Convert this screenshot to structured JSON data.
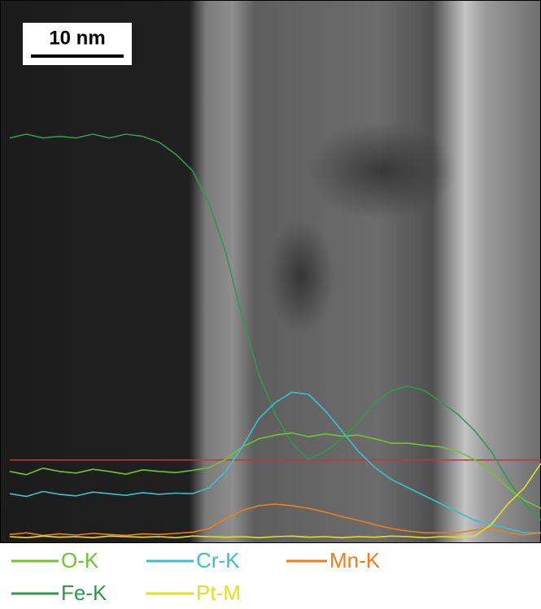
{
  "chart_data": {
    "type": "line",
    "scale_bar_label": "10 nm",
    "ylim": [
      0,
      100
    ],
    "reference_line": {
      "value": 15.3,
      "color": "#e8262a"
    },
    "series": [
      {
        "name": "O-K",
        "color": "#6cc62c",
        "values": [
          13.2,
          12.6,
          13.8,
          13.2,
          12.9,
          13.6,
          13.2,
          12.7,
          13.5,
          13.2,
          13.0,
          13.4,
          13.9,
          15.4,
          17.7,
          19.2,
          19.9,
          20.3,
          19.6,
          20.1,
          19.7,
          19.9,
          19.2,
          18.4,
          18.4,
          18.0,
          17.7,
          16.9,
          15.4,
          13.2,
          10.2,
          7.9,
          6.4
        ]
      },
      {
        "name": "Cr-K",
        "color": "#3cbfd0",
        "values": [
          9.1,
          8.6,
          9.5,
          9.0,
          8.7,
          9.4,
          9.1,
          8.8,
          9.3,
          9.0,
          9.2,
          9.1,
          10.2,
          13.2,
          17.7,
          22.9,
          25.9,
          27.8,
          27.4,
          24.4,
          20.7,
          16.9,
          13.9,
          11.7,
          10.2,
          8.7,
          7.2,
          5.7,
          4.2,
          3.4,
          2.7,
          1.9,
          1.9
        ]
      },
      {
        "name": "Mn-K",
        "color": "#f07c1c",
        "values": [
          1.6,
          1.9,
          1.4,
          1.7,
          1.5,
          1.8,
          1.6,
          1.4,
          1.7,
          1.6,
          1.8,
          2.0,
          2.7,
          4.5,
          6.0,
          6.9,
          7.2,
          6.9,
          6.4,
          5.7,
          4.9,
          4.2,
          3.4,
          2.7,
          2.2,
          1.9,
          1.9,
          1.9,
          2.4,
          2.7,
          1.9,
          1.5,
          1.9
        ]
      },
      {
        "name": "Fe-K",
        "color": "#2e9a4a",
        "values": [
          74.6,
          75.3,
          74.6,
          74.9,
          74.6,
          75.3,
          74.6,
          75.3,
          74.9,
          73.8,
          71.6,
          68.6,
          62.6,
          53.6,
          41.6,
          31.1,
          23.7,
          18.4,
          15.4,
          16.9,
          19.2,
          22.2,
          25.9,
          28.1,
          28.9,
          28.1,
          25.9,
          23.7,
          20.7,
          16.9,
          11.7,
          7.2,
          4.2
        ]
      },
      {
        "name": "Pt-M",
        "color": "#e6df1e",
        "values": [
          1.2,
          1.0,
          1.3,
          1.1,
          1.2,
          1.0,
          1.3,
          1.2,
          1.1,
          1.2,
          1.0,
          1.3,
          1.2,
          1.1,
          1.2,
          1.0,
          1.2,
          1.3,
          1.1,
          1.2,
          1.0,
          1.2,
          1.1,
          1.3,
          1.2,
          1.0,
          1.2,
          1.1,
          1.3,
          3.4,
          7.2,
          10.2,
          14.7
        ]
      }
    ]
  }
}
